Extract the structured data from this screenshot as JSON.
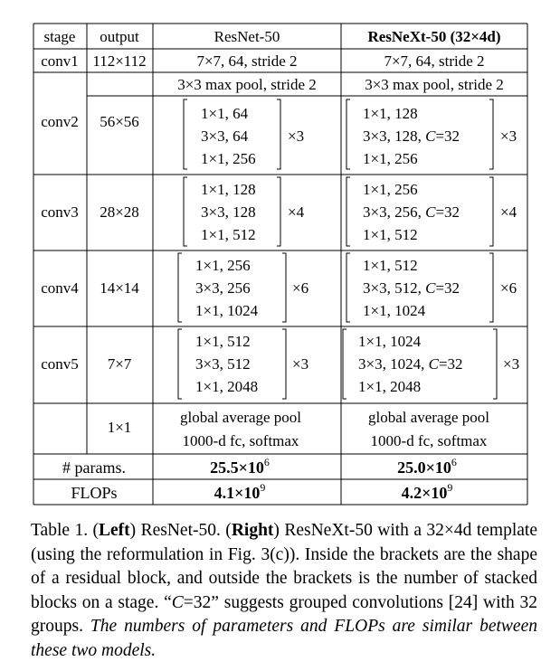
{
  "table": {
    "headers": {
      "stage": "stage",
      "output": "output",
      "resnet": "ResNet-50",
      "resnext": "ResNeXt-50 (32×4d)"
    },
    "conv1": {
      "stage": "conv1",
      "output": "112×112",
      "resnet": "7×7, 64, stride 2",
      "resnext": "7×7, 64, stride 2"
    },
    "pool": {
      "resnet": "3×3 max pool, stride 2",
      "resnext": "3×3 max pool, stride 2"
    },
    "conv2": {
      "stage": "conv2",
      "output": "56×56",
      "resnet_lines": [
        "1×1, 64",
        "3×3, 64",
        "1×1, 256"
      ],
      "resnet_mult": "×3",
      "resnext_lines": [
        "1×1, 128",
        "3×3, 128, C=32",
        "1×1, 256"
      ],
      "resnext_mult": "×3"
    },
    "conv3": {
      "stage": "conv3",
      "output": "28×28",
      "resnet_lines": [
        "1×1, 128",
        "3×3, 128",
        "1×1, 512"
      ],
      "resnet_mult": "×4",
      "resnext_lines": [
        "1×1, 256",
        "3×3, 256, C=32",
        "1×1, 512"
      ],
      "resnext_mult": "×4"
    },
    "conv4": {
      "stage": "conv4",
      "output": "14×14",
      "resnet_lines": [
        "1×1, 256",
        "3×3, 256",
        "1×1, 1024"
      ],
      "resnet_mult": "×6",
      "resnext_lines": [
        "1×1, 512",
        "3×3, 512, C=32",
        "1×1, 1024"
      ],
      "resnext_mult": "×6"
    },
    "conv5": {
      "stage": "conv5",
      "output": "7×7",
      "resnet_lines": [
        "1×1, 512",
        "3×3, 512",
        "1×1, 2048"
      ],
      "resnet_mult": "×3",
      "resnext_lines": [
        "1×1, 1024",
        "3×3, 1024, C=32",
        "1×1, 2048"
      ],
      "resnext_mult": "×3"
    },
    "final": {
      "output": "1×1",
      "resnet_pool": "global average pool",
      "resnet_fc": "1000-d fc, softmax",
      "resnext_pool": "global average pool",
      "resnext_fc": "1000-d fc, softmax"
    },
    "params": {
      "label": "# params.",
      "resnet_base": "25.5×10",
      "resnet_exp": "6",
      "resnext_base": "25.0×10",
      "resnext_exp": "6"
    },
    "flops": {
      "label": "FLOPs",
      "resnet_base": "4.1×10",
      "resnet_exp": "9",
      "resnext_base": "4.2×10",
      "resnext_exp": "9"
    }
  },
  "caption": {
    "prefix": "Table 1. (",
    "left": "Left",
    "mid1": ") ResNet-50.  (",
    "right": "Right",
    "mid2": ") ResNeXt-50 with a 32×4d template (using the reformulation in Fig. 3(c)). Inside the brackets are the shape of a residual block, and outside the brackets is the number of stacked blocks on a stage. “",
    "c_var": "C",
    "mid3": "=32” suggests grouped convolutions [24] with 32 groups. ",
    "italic": "The numbers of parameters and FLOPs are similar between these two models."
  }
}
